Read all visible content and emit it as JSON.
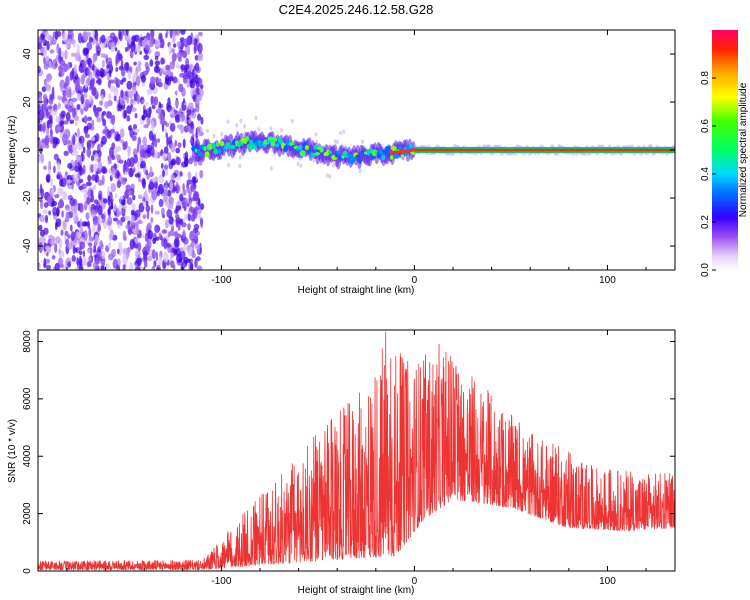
{
  "title": "C2E4.2025.246.12.58.G28",
  "chart_data": [
    {
      "type": "heatmap",
      "xlabel": "Height of straight line (km)",
      "ylabel": "Frequency (Hz)",
      "xlim": [
        -195,
        135
      ],
      "ylim": [
        -50,
        50
      ],
      "xticks": [
        -100,
        0,
        100
      ],
      "yticks": [
        -40,
        -20,
        0,
        20,
        40
      ],
      "noise_region_x": [
        -195,
        -110
      ],
      "ridge": [
        {
          "x": -115,
          "y": -1
        },
        {
          "x": -100,
          "y": 1
        },
        {
          "x": -85,
          "y": 3
        },
        {
          "x": -75,
          "y": 3
        },
        {
          "x": -60,
          "y": 1
        },
        {
          "x": -50,
          "y": -1
        },
        {
          "x": -40,
          "y": -3
        },
        {
          "x": -30,
          "y": -3
        },
        {
          "x": -20,
          "y": -2
        },
        {
          "x": -10,
          "y": -1
        },
        {
          "x": 0,
          "y": 0
        },
        {
          "x": 135,
          "y": 0
        }
      ],
      "colorbar": {
        "label": "Normalized spectral amplitude",
        "range": [
          0,
          1
        ],
        "ticks": [
          "0.0",
          "0.2",
          "0.4",
          "0.6",
          "0.8"
        ]
      }
    },
    {
      "type": "line",
      "xlabel": "Height of straight line (km)",
      "ylabel": "SNR (10 * v/v)",
      "xlim": [
        -195,
        135
      ],
      "ylim": [
        0,
        8400
      ],
      "xticks": [
        -100,
        0,
        100
      ],
      "yticks": [
        0,
        2000,
        4000,
        6000,
        8000
      ],
      "color": "#ee3333",
      "envelope": [
        {
          "x": -195,
          "y": 350
        },
        {
          "x": -110,
          "y": 380
        },
        {
          "x": -100,
          "y": 1100
        },
        {
          "x": -85,
          "y": 2300
        },
        {
          "x": -70,
          "y": 3300
        },
        {
          "x": -55,
          "y": 4500
        },
        {
          "x": -40,
          "y": 5500
        },
        {
          "x": -25,
          "y": 6500
        },
        {
          "x": -15,
          "y": 8400
        },
        {
          "x": -5,
          "y": 7400
        },
        {
          "x": 5,
          "y": 7600
        },
        {
          "x": 15,
          "y": 8000
        },
        {
          "x": 30,
          "y": 6900
        },
        {
          "x": 45,
          "y": 5800
        },
        {
          "x": 60,
          "y": 4800
        },
        {
          "x": 75,
          "y": 4400
        },
        {
          "x": 90,
          "y": 3700
        },
        {
          "x": 110,
          "y": 3500
        },
        {
          "x": 135,
          "y": 3400
        }
      ],
      "floor": [
        {
          "x": -195,
          "y": 40
        },
        {
          "x": -110,
          "y": 40
        },
        {
          "x": -90,
          "y": 150
        },
        {
          "x": -60,
          "y": 300
        },
        {
          "x": -30,
          "y": 450
        },
        {
          "x": -10,
          "y": 500
        },
        {
          "x": 5,
          "y": 1800
        },
        {
          "x": 20,
          "y": 2500
        },
        {
          "x": 50,
          "y": 2200
        },
        {
          "x": 80,
          "y": 1500
        },
        {
          "x": 110,
          "y": 1400
        },
        {
          "x": 135,
          "y": 1500
        }
      ]
    }
  ]
}
